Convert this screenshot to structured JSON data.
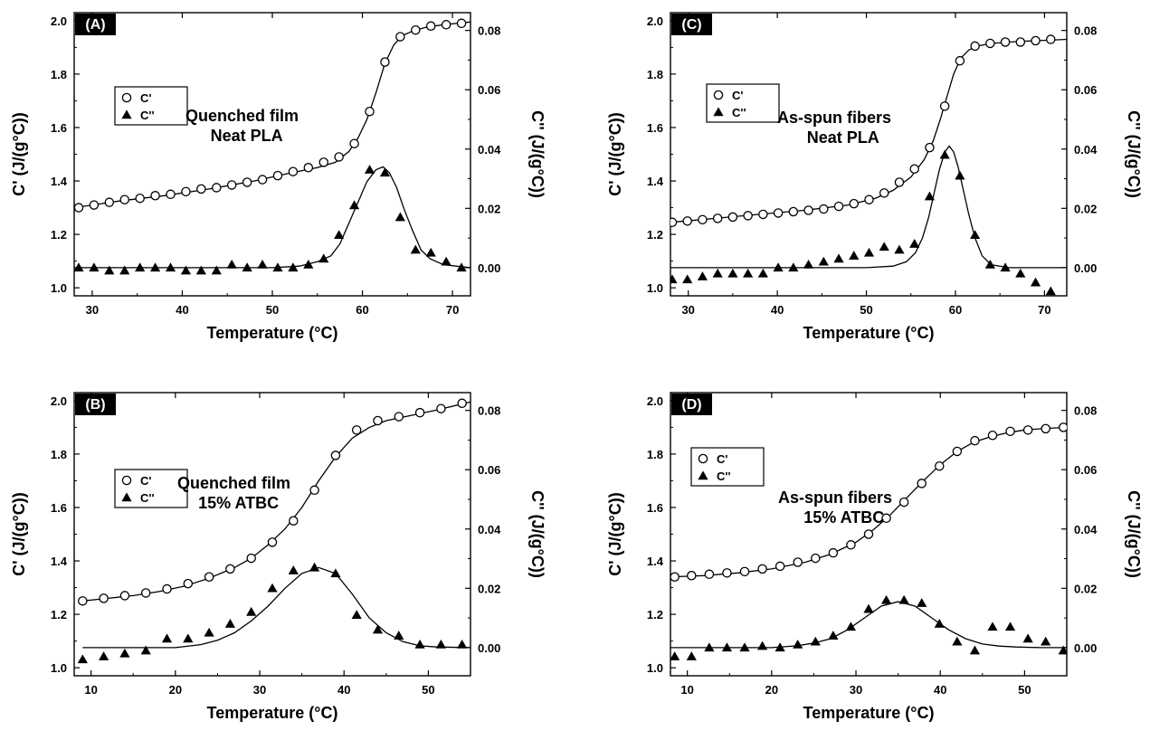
{
  "chart_data": [
    {
      "type": "scatter",
      "panel_label": "(A)",
      "annotation": [
        "Quenched film",
        "Neat PLA"
      ],
      "xlabel": "Temperature (°C)",
      "ylabel": "C' (J/(g°C))",
      "y2label": "C'' (J/(g°C))",
      "xlim": [
        28,
        72
      ],
      "ylim": [
        0.97,
        2.03
      ],
      "y2lim": [
        -0.0095,
        0.086
      ],
      "xticks": [
        30,
        40,
        50,
        60,
        70
      ],
      "yticks": [
        1.0,
        1.2,
        1.4,
        1.6,
        1.8,
        2.0
      ],
      "y2ticks": [
        0.0,
        0.02,
        0.04,
        0.06,
        0.08
      ],
      "xtick_labels": [
        "30",
        "40",
        "50",
        "60",
        "70"
      ],
      "ytick_labels": [
        "1.0",
        "1.2",
        "1.4",
        "1.6",
        "1.8",
        "2.0"
      ],
      "y2tick_labels": [
        "0.00",
        "0.02",
        "0.04",
        "0.06",
        "0.08"
      ],
      "legend": [
        "C'",
        "C''"
      ],
      "series": [
        {
          "name": "C'",
          "axis": "left",
          "marker": "circle-open",
          "x": [
            28.5,
            30.2,
            31.9,
            33.6,
            35.3,
            37.0,
            38.7,
            40.4,
            42.1,
            43.8,
            45.5,
            47.2,
            48.9,
            50.6,
            52.3,
            54.0,
            55.7,
            57.4,
            59.1,
            60.8,
            62.5,
            64.2,
            65.9,
            67.6,
            69.3,
            71.0
          ],
          "y": [
            1.3,
            1.31,
            1.32,
            1.33,
            1.335,
            1.345,
            1.35,
            1.36,
            1.37,
            1.375,
            1.385,
            1.395,
            1.405,
            1.42,
            1.435,
            1.45,
            1.47,
            1.49,
            1.54,
            1.66,
            1.845,
            1.94,
            1.965,
            1.98,
            1.985,
            1.99
          ]
        },
        {
          "name": "C''",
          "axis": "right",
          "marker": "triangle-filled",
          "x": [
            28.5,
            30.2,
            31.9,
            33.6,
            35.3,
            37.0,
            38.7,
            40.4,
            42.1,
            43.8,
            45.5,
            47.2,
            48.9,
            50.6,
            52.3,
            54.0,
            55.7,
            57.4,
            59.1,
            60.8,
            62.5,
            64.2,
            65.9,
            67.6,
            69.3,
            71.0
          ],
          "y": [
            0.0,
            0.0,
            -0.001,
            -0.001,
            0.0,
            0.0,
            0.0,
            -0.001,
            -0.001,
            -0.001,
            0.001,
            0.0,
            0.001,
            0.0,
            0.0,
            0.001,
            0.003,
            0.011,
            0.021,
            0.033,
            0.032,
            0.017,
            0.006,
            0.005,
            0.002,
            0.0
          ]
        },
        {
          "name": "C'' fit",
          "axis": "right",
          "marker": "line",
          "x": [
            28,
            44,
            50,
            53,
            55,
            56.5,
            57.5,
            58.5,
            59.5,
            60.5,
            61.5,
            62.3,
            63.0,
            63.8,
            64.6,
            65.5,
            66.5,
            67.5,
            69,
            72
          ],
          "y": [
            0.0,
            0.0,
            0.0,
            0.0005,
            0.002,
            0.004,
            0.008,
            0.015,
            0.022,
            0.029,
            0.033,
            0.034,
            0.032,
            0.027,
            0.02,
            0.013,
            0.006,
            0.003,
            0.001,
            0.0
          ]
        },
        {
          "name": "C' fit",
          "axis": "left",
          "marker": "line",
          "x": [
            28,
            33,
            38,
            43,
            48,
            52,
            55,
            57,
            58.5,
            59.5,
            60.5,
            61.5,
            62.5,
            63.5,
            64.5,
            65.5,
            67,
            69,
            72
          ],
          "y": [
            1.3,
            1.325,
            1.345,
            1.37,
            1.4,
            1.43,
            1.45,
            1.47,
            1.51,
            1.56,
            1.63,
            1.73,
            1.84,
            1.91,
            1.945,
            1.96,
            1.975,
            1.985,
            1.995
          ]
        }
      ]
    },
    {
      "type": "scatter",
      "panel_label": "(C)",
      "annotation": [
        "As-spun fibers",
        "Neat PLA"
      ],
      "xlabel": "Temperature (°C)",
      "ylabel": "C' (J/(g°C))",
      "y2label": "C'' (J/(g°C))",
      "xlim": [
        28,
        72.5
      ],
      "ylim": [
        0.97,
        2.03
      ],
      "y2lim": [
        -0.0095,
        0.086
      ],
      "xticks": [
        30,
        40,
        50,
        60,
        70
      ],
      "yticks": [
        1.0,
        1.2,
        1.4,
        1.6,
        1.8,
        2.0
      ],
      "y2ticks": [
        0.0,
        0.02,
        0.04,
        0.06,
        0.08
      ],
      "xtick_labels": [
        "30",
        "40",
        "50",
        "60",
        "70"
      ],
      "ytick_labels": [
        "1.0",
        "1.2",
        "1.4",
        "1.6",
        "1.8",
        "2.0"
      ],
      "y2tick_labels": [
        "0.00",
        "0.02",
        "0.04",
        "0.06",
        "0.08"
      ],
      "legend": [
        "C'",
        "C''"
      ],
      "series": [
        {
          "name": "C'",
          "axis": "left",
          "marker": "circle-open",
          "x": [
            28.2,
            29.9,
            31.6,
            33.3,
            35.0,
            36.7,
            38.4,
            40.1,
            41.8,
            43.5,
            45.2,
            46.9,
            48.6,
            50.3,
            52.0,
            53.7,
            55.4,
            57.1,
            58.8,
            60.5,
            62.2,
            63.9,
            65.6,
            67.3,
            69.0,
            70.7
          ],
          "y": [
            1.245,
            1.25,
            1.255,
            1.26,
            1.265,
            1.27,
            1.275,
            1.28,
            1.285,
            1.29,
            1.295,
            1.305,
            1.315,
            1.33,
            1.355,
            1.395,
            1.445,
            1.525,
            1.68,
            1.85,
            1.905,
            1.915,
            1.92,
            1.92,
            1.925,
            1.93
          ]
        },
        {
          "name": "C''",
          "axis": "right",
          "marker": "triangle-filled",
          "x": [
            28.2,
            29.9,
            31.6,
            33.3,
            35.0,
            36.7,
            38.4,
            40.1,
            41.8,
            43.5,
            45.2,
            46.9,
            48.6,
            50.3,
            52.0,
            53.7,
            55.4,
            57.1,
            58.8,
            60.5,
            62.2,
            63.9,
            65.6,
            67.3,
            69.0,
            70.7
          ],
          "y": [
            -0.004,
            -0.004,
            -0.003,
            -0.002,
            -0.002,
            -0.002,
            -0.002,
            0.0,
            0.0,
            0.001,
            0.002,
            0.003,
            0.004,
            0.005,
            0.007,
            0.006,
            0.008,
            0.024,
            0.038,
            0.031,
            0.011,
            0.001,
            0.0,
            -0.002,
            -0.005,
            -0.008
          ]
        },
        {
          "name": "C'' fit",
          "axis": "right",
          "marker": "line",
          "x": [
            28,
            50,
            53,
            54.5,
            55.5,
            56.3,
            57,
            57.6,
            58.2,
            58.8,
            59.3,
            59.8,
            60.3,
            60.9,
            61.5,
            62.2,
            63,
            64,
            66,
            72.5
          ],
          "y": [
            0.0,
            0.0,
            0.0005,
            0.002,
            0.005,
            0.01,
            0.017,
            0.025,
            0.033,
            0.039,
            0.041,
            0.039,
            0.034,
            0.026,
            0.018,
            0.01,
            0.004,
            0.001,
            0.0,
            0.0
          ]
        },
        {
          "name": "C' fit",
          "axis": "left",
          "marker": "line",
          "x": [
            28,
            33,
            38,
            43,
            48,
            51,
            53,
            55,
            56.5,
            57.5,
            58.3,
            59,
            59.8,
            60.6,
            61.5,
            62.5,
            64,
            67,
            72.5
          ],
          "y": [
            1.245,
            1.26,
            1.275,
            1.29,
            1.31,
            1.335,
            1.365,
            1.415,
            1.48,
            1.55,
            1.63,
            1.71,
            1.8,
            1.86,
            1.89,
            1.905,
            1.915,
            1.922,
            1.93
          ]
        }
      ]
    },
    {
      "type": "scatter",
      "panel_label": "(B)",
      "annotation": [
        "Quenched film",
        "15% ATBC"
      ],
      "xlabel": "Temperature (°C)",
      "ylabel": "C' (J/(g°C))",
      "y2label": "C'' (J/(g°C))",
      "xlim": [
        8,
        55
      ],
      "ylim": [
        0.97,
        2.03
      ],
      "y2lim": [
        -0.0095,
        0.086
      ],
      "xticks": [
        10,
        20,
        30,
        40,
        50
      ],
      "yticks": [
        1.0,
        1.2,
        1.4,
        1.6,
        1.8,
        2.0
      ],
      "y2ticks": [
        0.0,
        0.02,
        0.04,
        0.06,
        0.08
      ],
      "xtick_labels": [
        "10",
        "20",
        "30",
        "40",
        "50"
      ],
      "ytick_labels": [
        "1.0",
        "1.2",
        "1.4",
        "1.6",
        "1.8",
        "2.0"
      ],
      "y2tick_labels": [
        "0.00",
        "0.02",
        "0.04",
        "0.06",
        "0.08"
      ],
      "legend": [
        "C'",
        "C''"
      ],
      "series": [
        {
          "name": "C'",
          "axis": "left",
          "marker": "circle-open",
          "x": [
            9.0,
            11.5,
            14.0,
            16.5,
            19.0,
            21.5,
            24.0,
            26.5,
            29.0,
            31.5,
            34.0,
            36.5,
            39.0,
            41.5,
            44.0,
            46.5,
            49.0,
            51.5,
            54.0
          ],
          "y": [
            1.25,
            1.26,
            1.27,
            1.28,
            1.295,
            1.315,
            1.34,
            1.37,
            1.41,
            1.47,
            1.55,
            1.665,
            1.795,
            1.89,
            1.925,
            1.94,
            1.955,
            1.97,
            1.99
          ]
        },
        {
          "name": "C''",
          "axis": "right",
          "marker": "triangle-filled",
          "x": [
            9.0,
            11.5,
            14.0,
            16.5,
            19.0,
            21.5,
            24.0,
            26.5,
            29.0,
            31.5,
            34.0,
            36.5,
            39.0,
            41.5,
            44.0,
            46.5,
            49.0,
            51.5,
            54.0
          ],
          "y": [
            -0.004,
            -0.003,
            -0.002,
            -0.001,
            0.003,
            0.003,
            0.005,
            0.008,
            0.012,
            0.02,
            0.026,
            0.027,
            0.025,
            0.011,
            0.006,
            0.004,
            0.001,
            0.001,
            0.001
          ]
        },
        {
          "name": "C'' fit",
          "axis": "right",
          "marker": "line",
          "x": [
            9,
            20,
            23,
            25,
            27,
            29,
            31,
            33,
            35,
            37,
            39,
            41,
            43,
            45,
            47,
            49,
            51,
            55
          ],
          "y": [
            0.0,
            0.0,
            0.001,
            0.0025,
            0.005,
            0.009,
            0.014,
            0.02,
            0.025,
            0.027,
            0.025,
            0.018,
            0.01,
            0.005,
            0.002,
            0.0006,
            0.0002,
            0.0
          ]
        },
        {
          "name": "C' fit",
          "axis": "left",
          "marker": "line",
          "x": [
            9,
            12,
            15,
            18,
            21,
            24,
            27,
            29,
            31,
            33,
            35,
            37,
            39,
            41,
            43,
            45,
            48,
            51,
            55
          ],
          "y": [
            1.25,
            1.26,
            1.27,
            1.285,
            1.305,
            1.335,
            1.375,
            1.41,
            1.46,
            1.52,
            1.6,
            1.7,
            1.79,
            1.86,
            1.9,
            1.925,
            1.945,
            1.965,
            1.995
          ]
        }
      ]
    },
    {
      "type": "scatter",
      "panel_label": "(D)",
      "annotation": [
        "As-spun fibers",
        "15% ATBC"
      ],
      "xlabel": "Temperature (°C)",
      "ylabel": "C' (J/(g°C))",
      "y2label": "C'' (J/(g°C))",
      "xlim": [
        8,
        55
      ],
      "ylim": [
        0.97,
        2.03
      ],
      "y2lim": [
        -0.0095,
        0.086
      ],
      "xticks": [
        10,
        20,
        30,
        40,
        50
      ],
      "yticks": [
        1.0,
        1.2,
        1.4,
        1.6,
        1.8,
        2.0
      ],
      "y2ticks": [
        0.0,
        0.02,
        0.04,
        0.06,
        0.08
      ],
      "xtick_labels": [
        "10",
        "20",
        "30",
        "40",
        "50"
      ],
      "ytick_labels": [
        "1.0",
        "1.2",
        "1.4",
        "1.6",
        "1.8",
        "2.0"
      ],
      "y2tick_labels": [
        "0.00",
        "0.02",
        "0.04",
        "0.06",
        "0.08"
      ],
      "legend": [
        "C'",
        "C''"
      ],
      "series": [
        {
          "name": "C'",
          "axis": "left",
          "marker": "circle-open",
          "x": [
            8.5,
            10.5,
            12.6,
            14.7,
            16.8,
            18.9,
            21.0,
            23.1,
            25.2,
            27.3,
            29.4,
            31.5,
            33.6,
            35.7,
            37.8,
            39.9,
            42.0,
            44.1,
            46.2,
            48.3,
            50.4,
            52.5,
            54.6
          ],
          "y": [
            1.34,
            1.345,
            1.35,
            1.355,
            1.36,
            1.37,
            1.38,
            1.395,
            1.41,
            1.43,
            1.46,
            1.5,
            1.56,
            1.62,
            1.69,
            1.755,
            1.81,
            1.85,
            1.87,
            1.885,
            1.89,
            1.895,
            1.9
          ]
        },
        {
          "name": "C''",
          "axis": "right",
          "marker": "triangle-filled",
          "x": [
            8.5,
            10.5,
            12.6,
            14.7,
            16.8,
            18.9,
            21.0,
            23.1,
            25.2,
            27.3,
            29.4,
            31.5,
            33.6,
            35.7,
            37.8,
            39.9,
            42.0,
            44.1,
            46.2,
            48.3,
            50.4,
            52.5,
            54.6
          ],
          "y": [
            -0.003,
            -0.003,
            0.0,
            0.0,
            0.0,
            0.0005,
            0.0,
            0.001,
            0.002,
            0.004,
            0.007,
            0.013,
            0.016,
            0.016,
            0.015,
            0.008,
            0.002,
            -0.001,
            0.007,
            0.007,
            0.003,
            0.002,
            -0.001
          ]
        },
        {
          "name": "C'' fit",
          "axis": "right",
          "marker": "line",
          "x": [
            8,
            20,
            23,
            25,
            27,
            29,
            31,
            33,
            35,
            37,
            39,
            41,
            43,
            45,
            47,
            49,
            52,
            55
          ],
          "y": [
            0.0,
            0.0,
            0.0006,
            0.0015,
            0.003,
            0.006,
            0.01,
            0.014,
            0.0155,
            0.014,
            0.01,
            0.006,
            0.003,
            0.0012,
            0.0005,
            0.0002,
            0.0,
            0.0
          ]
        },
        {
          "name": "C' fit",
          "axis": "left",
          "marker": "line",
          "x": [
            8,
            12,
            16,
            20,
            24,
            27,
            30,
            32,
            34,
            36,
            38,
            40,
            42,
            44,
            46,
            48,
            50,
            52,
            55
          ],
          "y": [
            1.34,
            1.345,
            1.355,
            1.37,
            1.395,
            1.425,
            1.47,
            1.515,
            1.57,
            1.635,
            1.7,
            1.76,
            1.81,
            1.845,
            1.865,
            1.88,
            1.89,
            1.895,
            1.9
          ]
        }
      ]
    }
  ]
}
